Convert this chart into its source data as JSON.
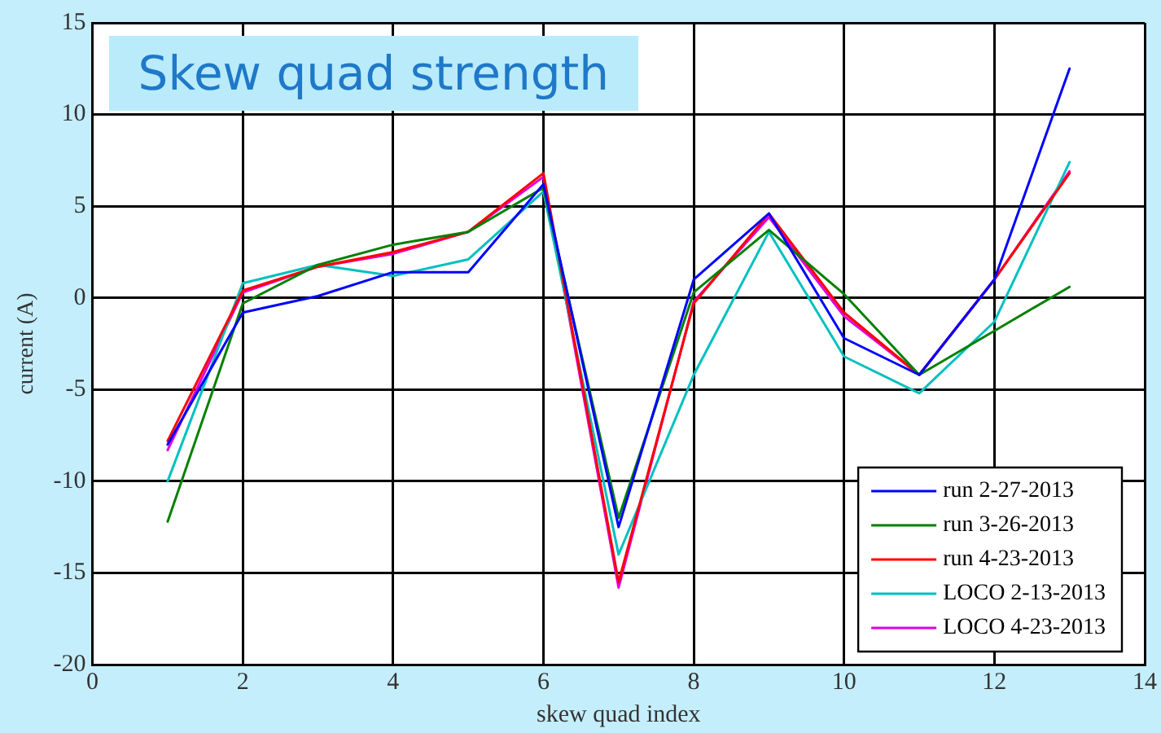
{
  "chart_data": {
    "type": "line",
    "title": "Skew quad strength",
    "xlabel": "skew quad index",
    "ylabel": "current (A)",
    "x": [
      1,
      2,
      3,
      4,
      5,
      6,
      7,
      8,
      9,
      10,
      11,
      12,
      13
    ],
    "series": [
      {
        "name": "run 2-27-2013",
        "color": "#0000ff",
        "values": [
          -8,
          -0.8,
          0.1,
          1.4,
          1.4,
          6.2,
          -12.5,
          1,
          4.6,
          -2.2,
          -4.2,
          1,
          12.5
        ]
      },
      {
        "name": "run 3-26-2013",
        "color": "#008000",
        "values": [
          -12.2,
          -0.3,
          1.8,
          2.9,
          3.6,
          6,
          -12,
          0.3,
          3.7,
          0.2,
          -4.2,
          -1.8,
          0.6
        ]
      },
      {
        "name": "run 4-23-2013",
        "color": "#ff0000",
        "values": [
          -7.8,
          0.4,
          1.7,
          2.5,
          3.6,
          6.8,
          -15.5,
          -0.3,
          4.6,
          -0.8,
          -4.2,
          1,
          6.8
        ]
      },
      {
        "name": "LOCO 2-13-2013",
        "color": "#00c0c0",
        "values": [
          -10,
          0.8,
          1.8,
          1.2,
          2.1,
          5.8,
          -14,
          -4.2,
          3.6,
          -3.2,
          -5.2,
          -1.3,
          7.4
        ]
      },
      {
        "name": "LOCO 4-23-2013",
        "color": "#e000e0",
        "values": [
          -8.3,
          0.3,
          1.7,
          2.4,
          3.6,
          6.6,
          -15.8,
          -0.2,
          4.4,
          -1,
          -4.2,
          1,
          6.9
        ]
      }
    ],
    "xlim": [
      0,
      14
    ],
    "xticks": [
      0,
      2,
      4,
      6,
      8,
      10,
      12,
      14
    ],
    "ylim": [
      -20,
      15
    ],
    "yticks": [
      -20,
      -15,
      -10,
      -5,
      0,
      5,
      10,
      15
    ],
    "grid": true,
    "legend": "bottom right",
    "marker": "none",
    "line_style": "solid"
  }
}
